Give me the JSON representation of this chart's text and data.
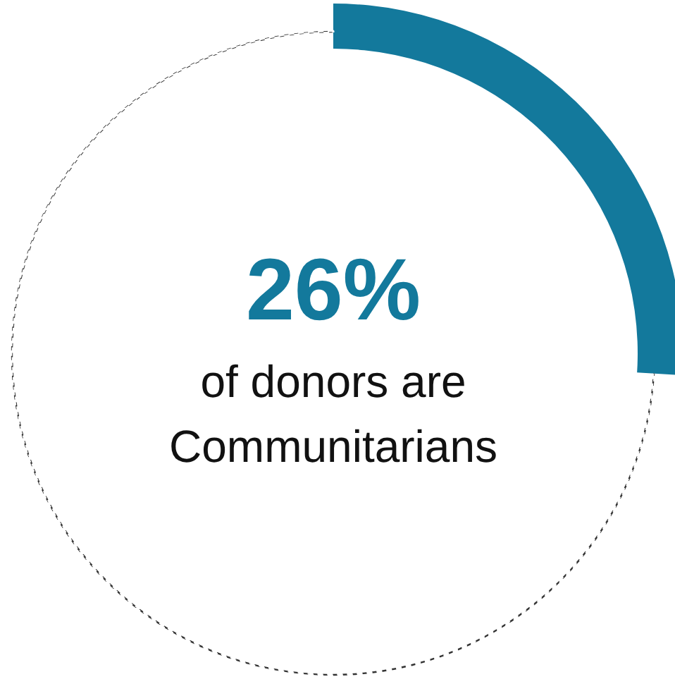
{
  "chart_data": {
    "type": "donut",
    "title": "26%",
    "subtitle": "of donors are Communitarians",
    "categories": [
      null,
      null
    ],
    "values": [
      26,
      74
    ],
    "colors": [
      "#13799c",
      "#333333"
    ],
    "line_style": "dashed"
  }
}
